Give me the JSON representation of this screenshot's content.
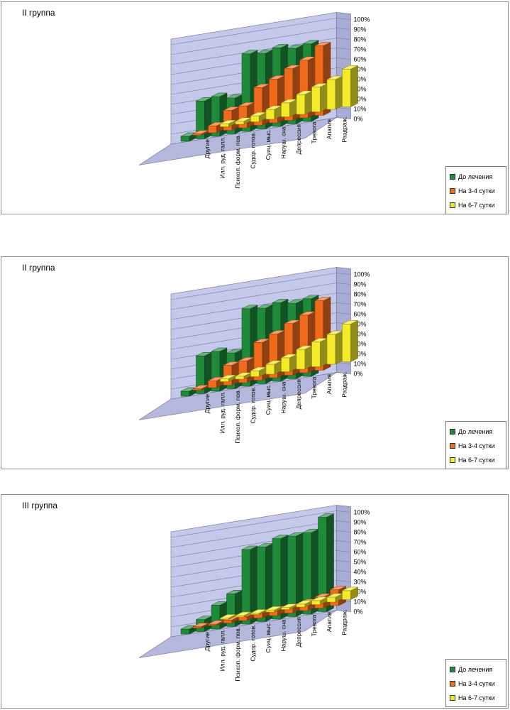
{
  "colors": {
    "До лечения": "#1f8a3a",
    "На 3-4 сутки": "#f06a1c",
    "На 6-7 сутки": "#f3ea2a",
    "wall": "#c4c8ea",
    "floor": "#b4b8dc",
    "grid": "#7a7a90"
  },
  "chart_data": [
    {
      "type": "bar",
      "title": "II группа",
      "categories": [
        "Другие",
        "Илл. руд. галл.",
        "Психоп. форм. пов.",
        "Судор. готов.",
        "Суиц. мыс.",
        "Наруш. сна",
        "Депрессия",
        "Тревога",
        "Апатия",
        "Раздраж."
      ],
      "series": [
        {
          "name": "До лечения",
          "values": [
            5,
            38,
            40,
            36,
            78,
            76,
            79,
            76,
            78,
            null
          ]
        },
        {
          "name": "На 3-4 сутки",
          "values": [
            1,
            7,
            20,
            22,
            38,
            44,
            52,
            58,
            70,
            null
          ]
        },
        {
          "name": "На 6-7 сутки",
          "values": [
            null,
            3,
            3,
            6,
            10,
            14,
            20,
            25,
            30,
            38
          ]
        }
      ],
      "yticks": [
        "0%",
        "10%",
        "20%",
        "30%",
        "40%",
        "50%",
        "60%",
        "70%",
        "80%",
        "90%",
        "100%"
      ],
      "ylim": [
        0,
        100
      ],
      "legend": [
        "До лечения",
        "На 3-4 сутки",
        "На 6-7 сутки"
      ]
    },
    {
      "type": "bar",
      "title": "II группа",
      "categories": [
        "Другие",
        "Илл. руд. галл.",
        "Психоп. форм. пов.",
        "Судор. готов.",
        "Суиц. мыс.",
        "Наруш. сна",
        "Депрессия",
        "Тревога",
        "Апатия",
        "Раздраж."
      ],
      "series": [
        {
          "name": "До лечения",
          "values": [
            5,
            38,
            40,
            36,
            78,
            76,
            79,
            76,
            78,
            null
          ]
        },
        {
          "name": "На 3-4 сутки",
          "values": [
            1,
            7,
            20,
            22,
            38,
            44,
            52,
            58,
            70,
            null
          ]
        },
        {
          "name": "На 6-7 сутки",
          "values": [
            null,
            3,
            3,
            6,
            10,
            14,
            20,
            25,
            30,
            38
          ]
        }
      ],
      "yticks": [
        "0%",
        "10%",
        "20%",
        "30%",
        "40%",
        "50%",
        "60%",
        "70%",
        "80%",
        "90%",
        "100%"
      ],
      "ylim": [
        0,
        100
      ],
      "legend": [
        "До лечения",
        "На 3-4 сутки",
        "На 6-7 сутки"
      ]
    },
    {
      "type": "bar",
      "title": "III группа",
      "categories": [
        "Другие",
        "Илл. руд. галл.",
        "Психоп. форм. пов.",
        "Судор. готов.",
        "Суиц. мыс.",
        "Наруш. сна",
        "Депрессия",
        "Тревога",
        "Апатия",
        "Раздраж."
      ],
      "series": [
        {
          "name": "До лечения",
          "values": [
            5,
            12,
            24,
            33,
            75,
            75,
            81,
            81,
            82,
            95
          ]
        },
        {
          "name": "На 3-4 сутки",
          "values": [
            1,
            1,
            3,
            4,
            5,
            6,
            6,
            8,
            11,
            16
          ]
        },
        {
          "name": "На 6-7 сутки",
          "values": [
            null,
            1,
            1,
            1,
            2,
            2,
            3,
            4,
            5,
            9
          ]
        }
      ],
      "yticks": [
        "0%",
        "10%",
        "20%",
        "30%",
        "40%",
        "50%",
        "60%",
        "70%",
        "80%",
        "90%",
        "100%"
      ],
      "ylim": [
        0,
        100
      ],
      "legend": [
        "До лечения",
        "На 3-4 сутки",
        "На 6-7 сутки"
      ]
    }
  ]
}
